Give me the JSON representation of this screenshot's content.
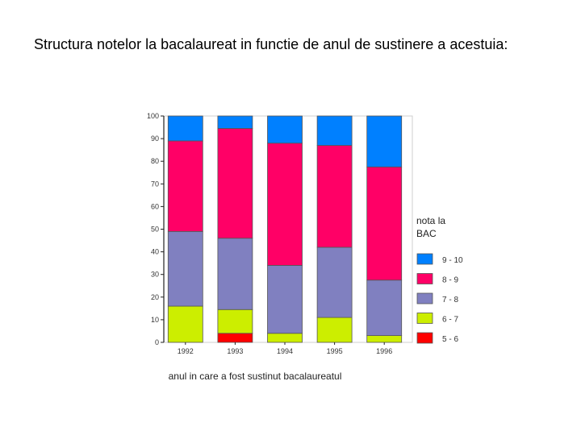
{
  "page": {
    "title": "Structura notelor la bacalaureat in functie de anul de sustinere a acestuia:"
  },
  "chart_data": {
    "type": "bar",
    "stacked": true,
    "categories": [
      "1992",
      "1993",
      "1994",
      "1995",
      "1996"
    ],
    "xlabel": "anul in care a fost sustinut bacalaureatul",
    "ylabel": "",
    "ylim": [
      0,
      100
    ],
    "yticks": [
      0,
      10,
      20,
      30,
      40,
      50,
      60,
      70,
      80,
      90,
      100
    ],
    "grid": false,
    "legend_title": "nota la BAC",
    "legend_position": "right",
    "series": [
      {
        "name": "5 - 6",
        "color": "#ff0000",
        "values": [
          0,
          4,
          0,
          0,
          0
        ]
      },
      {
        "name": "6 - 7",
        "color": "#ccee00",
        "values": [
          16,
          10.5,
          4,
          11,
          3
        ]
      },
      {
        "name": "7 - 8",
        "color": "#8080c0",
        "values": [
          33,
          31.5,
          30,
          31,
          24.5
        ]
      },
      {
        "name": "8 - 9",
        "color": "#ff0066",
        "values": [
          40,
          48.5,
          54,
          45,
          50
        ]
      },
      {
        "name": "9 - 10",
        "color": "#0080ff",
        "values": [
          11,
          5.5,
          12,
          13,
          22.5
        ]
      }
    ]
  }
}
